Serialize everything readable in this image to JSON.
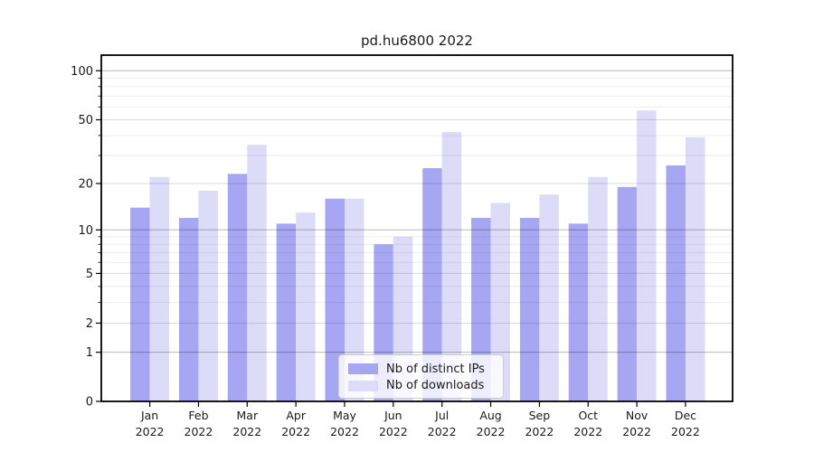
{
  "chart_data": {
    "type": "bar",
    "title": "pd.hu6800 2022",
    "year": "2022",
    "months": [
      "Jan",
      "Feb",
      "Mar",
      "Apr",
      "May",
      "Jun",
      "Jul",
      "Aug",
      "Sep",
      "Oct",
      "Nov",
      "Dec"
    ],
    "categories": [
      "Jan 2022",
      "Feb 2022",
      "Mar 2022",
      "Apr 2022",
      "May 2022",
      "Jun 2022",
      "Jul 2022",
      "Aug 2022",
      "Sep 2022",
      "Oct 2022",
      "Nov 2022",
      "Dec 2022"
    ],
    "series": [
      {
        "name": "Nb of distinct IPs",
        "color": "#a6a6f2",
        "values": [
          14,
          12,
          23,
          11,
          16,
          8,
          25,
          12,
          12,
          11,
          19,
          26
        ]
      },
      {
        "name": "Nb of downloads",
        "color": "#dcdcf8",
        "values": [
          22,
          18,
          35,
          13,
          16,
          9,
          42,
          15,
          17,
          22,
          57,
          39
        ]
      }
    ],
    "yscale": "log1p",
    "xlabel": "",
    "ylabel": "",
    "yticks": [
      0,
      1,
      2,
      5,
      10,
      20,
      50,
      100
    ],
    "yticks_minor": [
      3,
      4,
      6,
      7,
      8,
      9,
      30,
      40,
      60,
      70,
      80,
      90
    ],
    "ylim": [
      0,
      124
    ],
    "grid": true,
    "legend_position": "bottom-center"
  },
  "colors": {
    "axis": "#000000",
    "text": "#1a1a1a",
    "grid_major": "rgba(0,0,0,0.28)",
    "grid_mid": "rgba(0,0,0,0.14)",
    "grid_minor": "rgba(0,0,0,0.065)",
    "legend_border": "#cccccc",
    "legend_bg": "rgba(255,255,255,0.8)"
  }
}
